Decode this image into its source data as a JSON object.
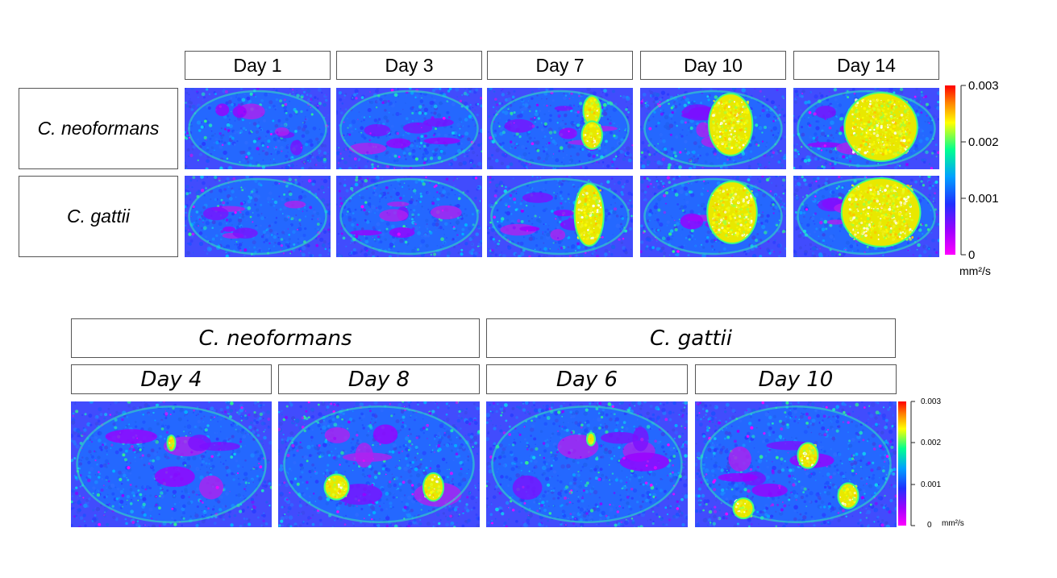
{
  "top": {
    "day_labels": [
      "Day 1",
      "Day 3",
      "Day 7",
      "Day 10",
      "Day 14"
    ],
    "row_labels": [
      "C. neoformans",
      "C. gattii"
    ],
    "colorbar": {
      "ticks": [
        "0.003",
        "0.002",
        "0.001",
        "0"
      ],
      "unit": "mm²/s"
    },
    "lesion_level": [
      [
        0,
        0,
        0.55,
        0.8,
        1.0
      ],
      [
        0,
        0,
        0.6,
        0.8,
        1.0
      ]
    ]
  },
  "bottom": {
    "group_labels": [
      "C. neoformans",
      "C. gattii"
    ],
    "day_labels": [
      "Day 4",
      "Day 8",
      "Day 6",
      "Day 10"
    ],
    "colorbar": {
      "ticks": [
        "0.003",
        "0.002",
        "0.001",
        "0"
      ],
      "unit": "mm²/s"
    }
  },
  "colors": {
    "map_scale": [
      "#ff00ff",
      "#a000ff",
      "#2030ff",
      "#00a0ff",
      "#00ff90",
      "#ffff00",
      "#ff8000",
      "#ff0000"
    ],
    "box_border": "#555555"
  }
}
